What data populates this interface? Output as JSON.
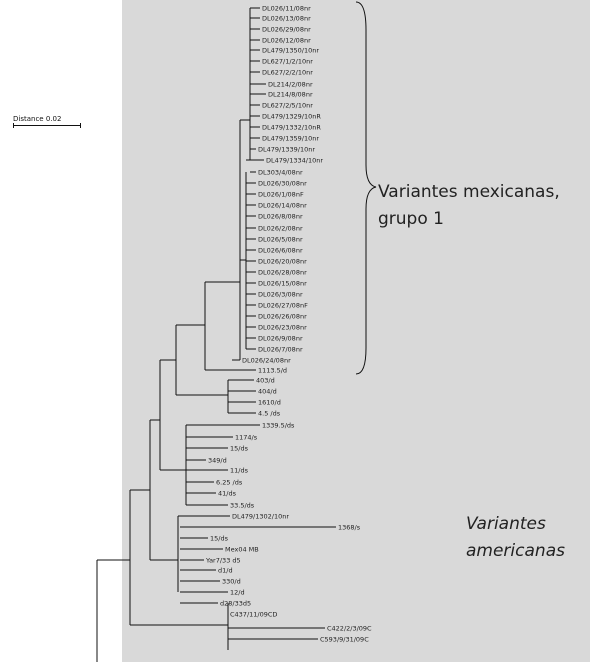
{
  "scale": {
    "label": "Distance 0.02"
  },
  "groups": {
    "mexican": {
      "line1": "Variantes mexicanas,",
      "line2": "grupo 1"
    },
    "american": {
      "line1": "Variantes",
      "line2": "americanas"
    }
  },
  "leaves": [
    "DL026/11/08nr",
    "DL026/13/08nr",
    "DL026/29/08nr",
    "DL026/12/08nr",
    "DL479/1350/10nr",
    "DL627/1/2/10nr",
    "DL627/2/2/10nr",
    "DL214/2/08nr",
    "DL214/8/08nr",
    "DL627/2/5/10nr",
    "DL479/1329/10nR",
    "DL479/1332/10nR",
    "DL479/1359/10nr",
    "DL479/1339/10nr",
    "DL479/1334/10nr",
    "DL303/4/08nr",
    "DL026/30/08nr",
    "DL026/1/08nF",
    "DL026/14/08nr",
    "DL026/8/08nr",
    "DL026/2/08nr",
    "DL026/5/08nr",
    "DL026/6/08nr",
    "DL026/20/08nr",
    "DL026/28/08nr",
    "DL026/15/08nr",
    "DL026/3/08nr",
    "DL026/27/08nF",
    "DL026/26/08nr",
    "DL026/23/08nr",
    "DL026/9/08nr",
    "DL026/7/08nr",
    "DL026/24/08nr",
    "1113.5/d",
    "403/d",
    "404/d",
    "1610/d",
    "4.5 /ds",
    "1339.5/ds",
    "1174/s",
    "15/ds",
    "349/d",
    "11/ds",
    "6.25 /ds",
    "41/ds",
    "33.5/ds",
    "DL479/1302/10nr",
    "1368/s",
    "15/ds",
    "Mex04 MB",
    "Yar7/33 d5",
    "d1/d",
    "330/d",
    "12/d",
    "d28/33d5",
    "C437/11/09CD",
    "C422/2/3/09C",
    "C593/9/31/09C"
  ]
}
